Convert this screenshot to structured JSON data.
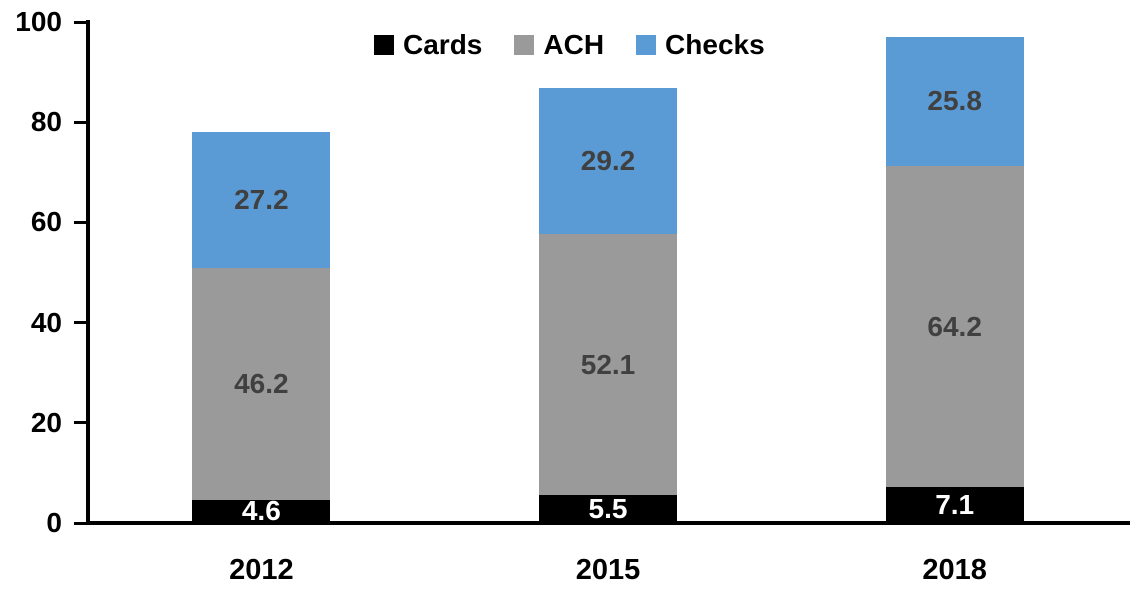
{
  "chart_data": {
    "type": "bar",
    "stacked": true,
    "title": "",
    "xlabel": "",
    "ylabel": "",
    "categories": [
      "2012",
      "2015",
      "2018"
    ],
    "series": [
      {
        "name": "Cards",
        "color": "#000000",
        "label_color": "#FFFFFF",
        "values": [
          4.6,
          5.5,
          7.1
        ]
      },
      {
        "name": "ACH",
        "color": "#9A9A9A",
        "label_color": "#404040",
        "values": [
          46.2,
          52.1,
          64.2
        ]
      },
      {
        "name": "Checks",
        "color": "#5B9BD5",
        "label_color": "#404040",
        "values": [
          27.2,
          29.2,
          25.8
        ]
      }
    ],
    "stack_totals": [
      78.0,
      86.8,
      97.1
    ],
    "yticks": [
      0,
      20,
      40,
      60,
      80,
      100
    ],
    "ylim": [
      0,
      100
    ],
    "grid": false,
    "data_labels": true,
    "legend_position": "top-center",
    "axis_color": "#000000",
    "tick_label_color": "#000000"
  }
}
